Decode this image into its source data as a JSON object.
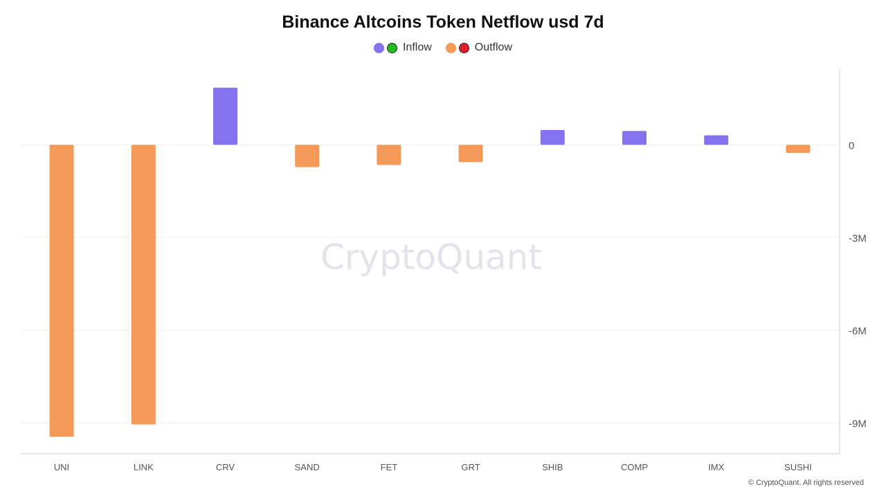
{
  "title": "Binance Altcoins Token Netflow usd 7d",
  "legend": [
    {
      "label": "Inflow",
      "colors": [
        "#8472ee",
        "#22bb22"
      ]
    },
    {
      "label": "Outflow",
      "colors": [
        "#f39a58",
        "#e01f2e"
      ]
    }
  ],
  "watermark": "CryptoQuant",
  "copyright": "© CryptoQuant. All rights reserved",
  "chart_data": {
    "type": "bar",
    "categories": [
      "UNI",
      "LINK",
      "CRV",
      "SAND",
      "FET",
      "GRT",
      "SHIB",
      "COMP",
      "IMX",
      "SUSHI"
    ],
    "values": [
      -9450000,
      -9050000,
      1850000,
      -720000,
      -650000,
      -560000,
      480000,
      450000,
      310000,
      -260000
    ],
    "y_ticks": [
      0,
      -3000000,
      -6000000,
      -9000000
    ],
    "y_tick_labels": [
      "0",
      "-3M",
      "-6M",
      "-9M"
    ],
    "ylim": [
      -10000000,
      2450000
    ],
    "y_axis_side": "right",
    "grid": true,
    "legend_position": "top-center",
    "colors": {
      "positive": "#8472ee",
      "negative": "#f39a58"
    }
  }
}
